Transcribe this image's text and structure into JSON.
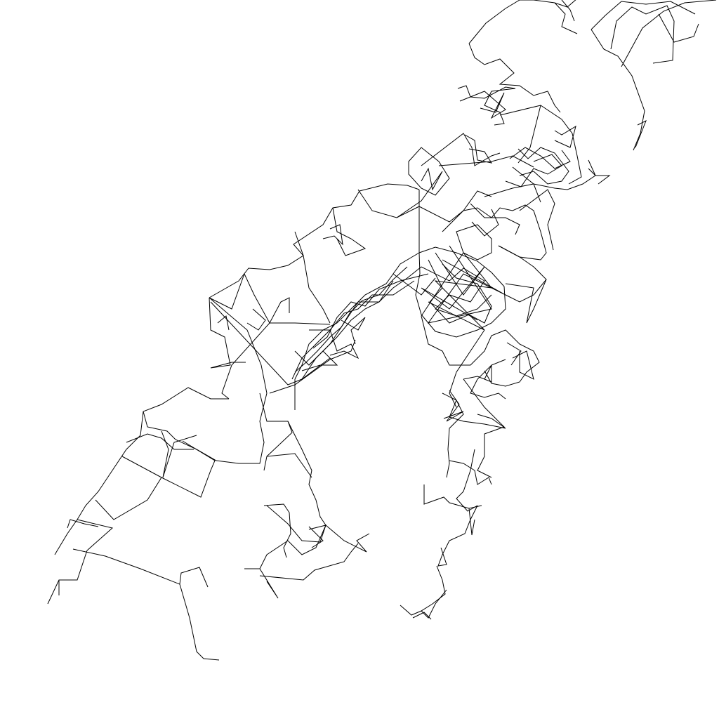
{
  "canvas": {
    "background": "#ffffff",
    "stroke_color": "#000000"
  },
  "figure": {
    "kind": "line wireframe drawing",
    "text_labels": []
  }
}
